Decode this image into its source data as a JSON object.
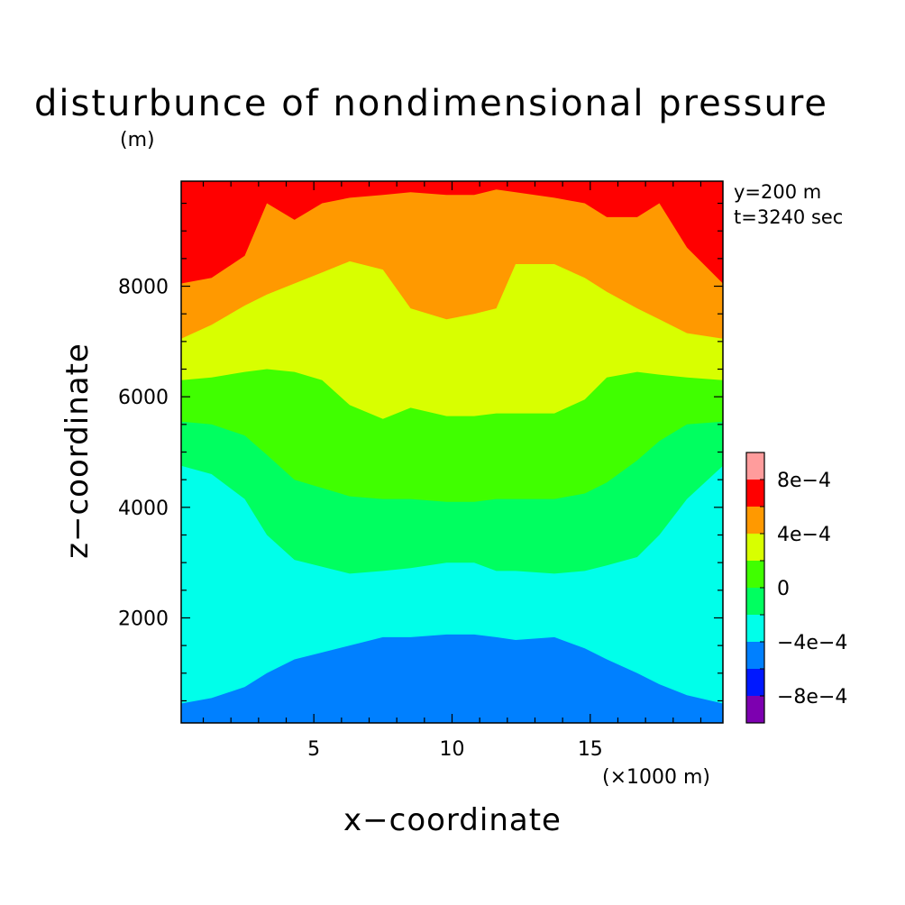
{
  "chart_data": {
    "type": "heatmap",
    "title": "disturbunce of nondimensional pressure",
    "xlabel": "x−coordinate",
    "ylabel": "z−coordinate",
    "x_unit": "(×1000 m)",
    "y_unit": "(m)",
    "annotations": [
      "y=200 m",
      "t=3240 sec"
    ],
    "xlim": [
      0.2,
      19.8
    ],
    "ylim": [
      100,
      9900
    ],
    "x_ticks": [
      5,
      10,
      15
    ],
    "x_tick_labels": [
      "5",
      "10",
      "15"
    ],
    "y_ticks": [
      2000,
      4000,
      6000,
      8000
    ],
    "y_tick_labels": [
      "2000",
      "4000",
      "6000",
      "8000"
    ],
    "colorbar": {
      "levels": [
        -0.001,
        -0.0008,
        -0.0006,
        -0.0004,
        -0.0002,
        0,
        0.0002,
        0.0004,
        0.0006,
        0.0008,
        0.001
      ],
      "colors": [
        "#7d00b0",
        "#0018ff",
        "#0080ff",
        "#00ffea",
        "#00ff60",
        "#40ff00",
        "#d8ff00",
        "#ff9900",
        "#ff0000",
        "#ff9c9c"
      ],
      "labels": [
        "8e−4",
        "4e−4",
        "0",
        "−4e−4",
        "−8e−4"
      ],
      "label_values": [
        0.0008,
        0.0004,
        0,
        -0.0004,
        -0.0008
      ]
    },
    "contours": [
      {
        "level": -0.0004,
        "points": [
          [
            0.2,
            450
          ],
          [
            1.3,
            550
          ],
          [
            2.5,
            750
          ],
          [
            3.3,
            1000
          ],
          [
            4.3,
            1250
          ],
          [
            6.3,
            1500
          ],
          [
            7.5,
            1650
          ],
          [
            8.5,
            1650
          ],
          [
            9.8,
            1700
          ],
          [
            10.8,
            1700
          ],
          [
            11.6,
            1650
          ],
          [
            12.3,
            1600
          ],
          [
            13.7,
            1650
          ],
          [
            14.8,
            1450
          ],
          [
            15.6,
            1250
          ],
          [
            16.7,
            1000
          ],
          [
            17.5,
            800
          ],
          [
            18.5,
            600
          ],
          [
            19.8,
            450
          ]
        ]
      },
      {
        "level": -0.0002,
        "points": [
          [
            0.2,
            4750
          ],
          [
            1.3,
            4600
          ],
          [
            2.5,
            4150
          ],
          [
            3.3,
            3500
          ],
          [
            4.3,
            3050
          ],
          [
            6.3,
            2800
          ],
          [
            7.5,
            2850
          ],
          [
            8.5,
            2900
          ],
          [
            9.8,
            3000
          ],
          [
            10.8,
            3000
          ],
          [
            11.6,
            2850
          ],
          [
            12.3,
            2850
          ],
          [
            13.7,
            2800
          ],
          [
            14.8,
            2850
          ],
          [
            15.6,
            2950
          ],
          [
            16.7,
            3100
          ],
          [
            17.5,
            3500
          ],
          [
            18.5,
            4150
          ],
          [
            19.8,
            4750
          ]
        ]
      },
      {
        "level": 0,
        "points": [
          [
            0.2,
            5550
          ],
          [
            1.3,
            5500
          ],
          [
            2.5,
            5300
          ],
          [
            3.3,
            4950
          ],
          [
            4.3,
            4500
          ],
          [
            6.3,
            4200
          ],
          [
            7.5,
            4150
          ],
          [
            8.5,
            4150
          ],
          [
            9.8,
            4100
          ],
          [
            10.8,
            4100
          ],
          [
            11.6,
            4150
          ],
          [
            12.3,
            4150
          ],
          [
            13.7,
            4150
          ],
          [
            14.8,
            4250
          ],
          [
            15.6,
            4450
          ],
          [
            16.7,
            4850
          ],
          [
            17.5,
            5200
          ],
          [
            18.5,
            5500
          ],
          [
            19.8,
            5550
          ]
        ]
      },
      {
        "level": 0.0002,
        "points": [
          [
            0.2,
            6300
          ],
          [
            1.3,
            6350
          ],
          [
            2.5,
            6450
          ],
          [
            3.3,
            6500
          ],
          [
            4.3,
            6450
          ],
          [
            5.3,
            6300
          ],
          [
            6.3,
            5850
          ],
          [
            7.5,
            5600
          ],
          [
            8.5,
            5800
          ],
          [
            9.8,
            5650
          ],
          [
            10.8,
            5650
          ],
          [
            11.6,
            5700
          ],
          [
            12.3,
            5700
          ],
          [
            13.7,
            5700
          ],
          [
            14.8,
            5950
          ],
          [
            15.6,
            6350
          ],
          [
            16.7,
            6450
          ],
          [
            17.5,
            6400
          ],
          [
            18.5,
            6350
          ],
          [
            19.8,
            6300
          ]
        ]
      },
      {
        "level": 0.0004,
        "points": [
          [
            0.2,
            7050
          ],
          [
            1.3,
            7300
          ],
          [
            2.5,
            7650
          ],
          [
            3.3,
            7850
          ],
          [
            4.3,
            8050
          ],
          [
            5.3,
            8250
          ],
          [
            6.3,
            8450
          ],
          [
            7.5,
            8300
          ],
          [
            8.5,
            7600
          ],
          [
            9.8,
            7400
          ],
          [
            10.8,
            7500
          ],
          [
            11.6,
            7600
          ],
          [
            12.3,
            8400
          ],
          [
            13.7,
            8400
          ],
          [
            14.8,
            8150
          ],
          [
            15.6,
            7900
          ],
          [
            16.7,
            7600
          ],
          [
            17.5,
            7400
          ],
          [
            18.5,
            7150
          ],
          [
            19.8,
            7050
          ]
        ]
      },
      {
        "level": 0.0006,
        "points": [
          [
            0.2,
            8050
          ],
          [
            1.3,
            8150
          ],
          [
            2.5,
            8550
          ],
          [
            3.3,
            9500
          ],
          [
            4.3,
            9200
          ],
          [
            5.3,
            9500
          ],
          [
            6.3,
            9600
          ],
          [
            7.5,
            9650
          ],
          [
            8.5,
            9700
          ],
          [
            9.8,
            9650
          ],
          [
            10.8,
            9650
          ],
          [
            11.6,
            9750
          ],
          [
            12.3,
            9700
          ],
          [
            13.7,
            9600
          ],
          [
            14.8,
            9500
          ],
          [
            15.6,
            9250
          ],
          [
            16.7,
            9250
          ],
          [
            17.5,
            9500
          ],
          [
            18.5,
            8700
          ],
          [
            19.8,
            8050
          ]
        ]
      }
    ]
  }
}
